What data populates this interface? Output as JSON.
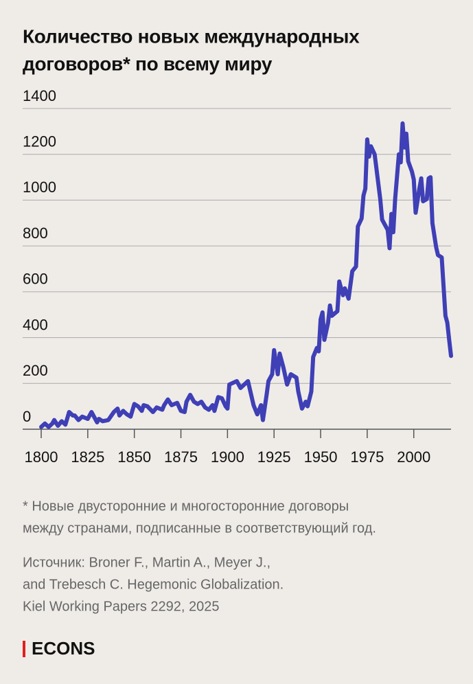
{
  "chart_data": {
    "type": "line",
    "title_lines": [
      "Количество новых международных",
      "договоров* по всему миру"
    ],
    "x": [
      1800,
      1802,
      1804,
      1806,
      1807,
      1809,
      1811,
      1813,
      1815,
      1817,
      1818,
      1820,
      1822,
      1825,
      1827,
      1830,
      1831,
      1833,
      1836,
      1839,
      1841,
      1842,
      1844,
      1846,
      1848,
      1850,
      1852,
      1854,
      1855,
      1857,
      1860,
      1862,
      1865,
      1866,
      1868,
      1870,
      1873,
      1875,
      1877,
      1878,
      1880,
      1882,
      1884,
      1886,
      1888,
      1890,
      1892,
      1893,
      1895,
      1897,
      1899,
      1900,
      1901,
      1905,
      1907,
      1911,
      1914,
      1916,
      1918,
      1919,
      1921,
      1922,
      1924,
      1925,
      1927,
      1928,
      1930,
      1932,
      1934,
      1937,
      1938,
      1940,
      1942,
      1943,
      1945,
      1946,
      1948,
      1949,
      1950,
      1951,
      1952,
      1954,
      1955,
      1956,
      1959,
      1960,
      1962,
      1963,
      1965,
      1967,
      1969,
      1970,
      1972,
      1973,
      1974,
      1975,
      1976,
      1977,
      1979,
      1982,
      1983,
      1986,
      1987,
      1988,
      1989,
      1990,
      1992,
      1993,
      1994,
      1995,
      1996,
      1997,
      1999,
      2000,
      2001,
      2003,
      2004,
      2005,
      2007,
      2008,
      2009,
      2010,
      2012,
      2013,
      2015,
      2017,
      2018,
      2019,
      2020
    ],
    "values": [
      10,
      25,
      10,
      25,
      40,
      15,
      35,
      20,
      75,
      60,
      60,
      40,
      55,
      45,
      75,
      30,
      45,
      35,
      40,
      75,
      90,
      60,
      80,
      65,
      55,
      110,
      100,
      80,
      105,
      100,
      75,
      95,
      85,
      105,
      130,
      105,
      115,
      80,
      75,
      120,
      150,
      120,
      110,
      120,
      95,
      85,
      105,
      80,
      140,
      135,
      100,
      90,
      195,
      210,
      180,
      210,
      105,
      65,
      105,
      40,
      150,
      210,
      240,
      345,
      240,
      330,
      270,
      195,
      240,
      225,
      165,
      90,
      120,
      100,
      165,
      315,
      355,
      340,
      480,
      510,
      390,
      465,
      540,
      495,
      515,
      645,
      585,
      615,
      570,
      690,
      710,
      885,
      920,
      1020,
      1050,
      1265,
      1190,
      1235,
      1200,
      1005,
      915,
      870,
      790,
      940,
      860,
      1005,
      1200,
      1165,
      1335,
      1230,
      1290,
      1170,
      1125,
      1090,
      945,
      1050,
      1095,
      995,
      1005,
      1095,
      1100,
      900,
      795,
      760,
      750,
      495,
      465,
      390,
      320
    ],
    "color": "#3f3fb6",
    "xlim": [
      1800,
      2020
    ],
    "xticks": [
      1800,
      1825,
      1850,
      1875,
      1900,
      1925,
      1950,
      1975,
      2000
    ],
    "ylim": [
      0,
      1400
    ],
    "yticks": [
      0,
      200,
      400,
      600,
      800,
      1000,
      1200,
      1400
    ],
    "grid": true,
    "footnote_lines": [
      "* Новые двусторонние и многосторонние договоры",
      "между странами, подписанные в соответствующий год."
    ],
    "source_lines": [
      "Источник: Broner F., Martin A., Meyer J.,",
      "and Trebesch C. Hegemonic Globalization.",
      "Kiel Working Papers 2292, 2025"
    ],
    "brand": "ECONS"
  }
}
